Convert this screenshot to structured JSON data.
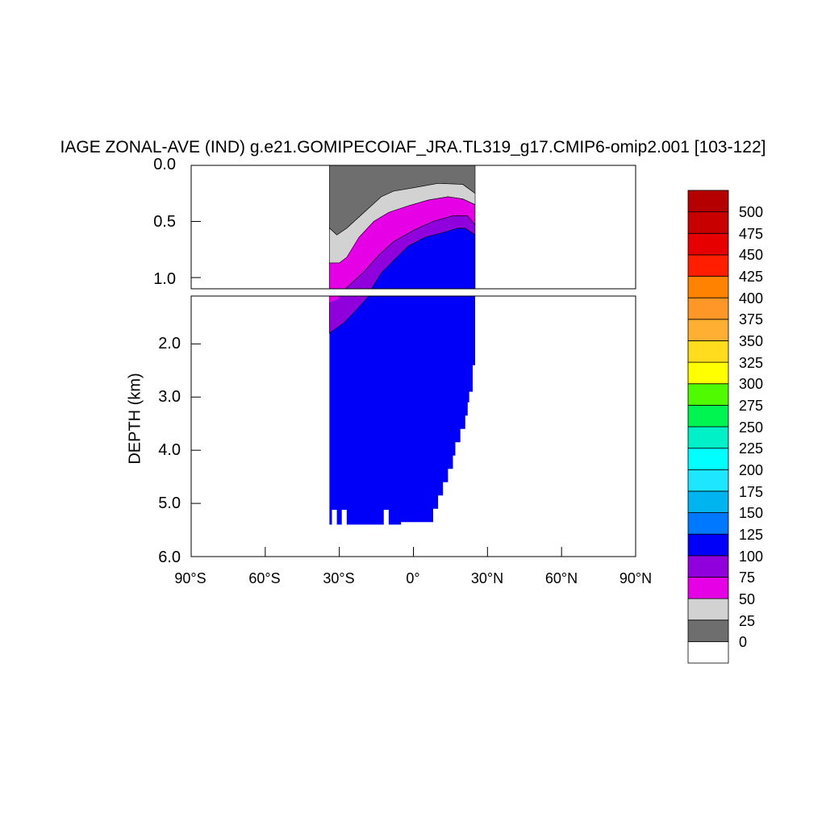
{
  "chart_data": {
    "type": "heatmap",
    "title": "IAGE ZONAL-AVE (IND) g.e21.GOMIPECOIAF_JRA.TL319_g17.CMIP6-omip2.001 [103-122]",
    "ylabel": "DEPTH (km)",
    "xlabel": "",
    "x_tick_labels": [
      "90°S",
      "60°S",
      "30°S",
      "0°",
      "30°N",
      "60°N",
      "90°N"
    ],
    "x_tick_values": [
      -90,
      -60,
      -30,
      0,
      30,
      60,
      90
    ],
    "upper_panel": {
      "ylim": [
        0,
        1.1
      ],
      "y_tick_labels": [
        "0.0",
        "0.5",
        "1.0"
      ],
      "y_tick_values": [
        0,
        0.5,
        1.0
      ]
    },
    "lower_panel": {
      "ylim": [
        1.1,
        6.0
      ],
      "y_tick_labels": [
        "2.0",
        "3.0",
        "4.0",
        "5.0",
        "6.0"
      ],
      "y_tick_values": [
        2,
        3,
        4,
        5,
        6
      ]
    },
    "colorbar": {
      "levels": [
        "0",
        "25",
        "50",
        "75",
        "100",
        "125",
        "150",
        "175",
        "200",
        "225",
        "250",
        "275",
        "300",
        "325",
        "350",
        "375",
        "400",
        "425",
        "450",
        "475",
        "500"
      ],
      "colors": [
        "#ffffff",
        "#6e6e6e",
        "#d2d2d2",
        "#e600e6",
        "#9000dc",
        "#0000fa",
        "#0078ff",
        "#00b4f0",
        "#1ee6ff",
        "#00ffff",
        "#00f0c8",
        "#00f550",
        "#50fa00",
        "#ffff00",
        "#ffdc1e",
        "#ffaf32",
        "#ff9628",
        "#ff8200",
        "#ff1e00",
        "#e60000",
        "#c80000",
        "#b40000"
      ]
    },
    "contour_bands": [
      {
        "range": "0-25",
        "color": "#6e6e6e",
        "top": [
          [
            -34,
            0
          ],
          [
            24,
            0
          ],
          [
            24,
            0.05
          ],
          [
            -34,
            0.05
          ]
        ],
        "bottom": [
          [
            -34,
            0.56
          ],
          [
            -31,
            0.62
          ],
          [
            -27,
            0.56
          ],
          [
            -20,
            0.42
          ],
          [
            -13,
            0.28
          ],
          [
            -8,
            0.23
          ],
          [
            0,
            0.2
          ],
          [
            10,
            0.16
          ],
          [
            20,
            0.17
          ],
          [
            25,
            0.25
          ]
        ]
      },
      {
        "range": "25-50",
        "color": "#d2d2d2",
        "bottom": [
          [
            -34,
            0.87
          ],
          [
            -30,
            0.87
          ],
          [
            -27,
            0.82
          ],
          [
            -22,
            0.64
          ],
          [
            -16,
            0.5
          ],
          [
            -10,
            0.42
          ],
          [
            -2,
            0.36
          ],
          [
            6,
            0.31
          ],
          [
            14,
            0.28
          ],
          [
            20,
            0.3
          ],
          [
            25,
            0.35
          ]
        ]
      },
      {
        "range": "50-75",
        "color": "#e600e6",
        "bottom": [
          [
            -34,
            1.22
          ],
          [
            -30,
            1.15
          ],
          [
            -25,
            1.05
          ],
          [
            -20,
            0.95
          ],
          [
            -14,
            0.8
          ],
          [
            -8,
            0.68
          ],
          [
            0,
            0.58
          ],
          [
            8,
            0.5
          ],
          [
            16,
            0.45
          ],
          [
            22,
            0.45
          ],
          [
            25,
            0.53
          ]
        ]
      },
      {
        "range": "75-100",
        "color": "#9000dc",
        "bottom": [
          [
            -34,
            1.8
          ],
          [
            -28,
            1.6
          ],
          [
            -23,
            1.36
          ],
          [
            -18,
            1.14
          ],
          [
            -13,
            0.96
          ],
          [
            -8,
            0.85
          ],
          [
            -2,
            0.72
          ],
          [
            5,
            0.64
          ],
          [
            12,
            0.6
          ],
          [
            18,
            0.56
          ],
          [
            21,
            0.56
          ],
          [
            25,
            0.62
          ]
        ]
      },
      {
        "range": "100-125",
        "color": "#0000fa",
        "bottom": [
          [
            -34,
            5.35
          ],
          [
            25,
            5.35
          ]
        ]
      }
    ]
  }
}
